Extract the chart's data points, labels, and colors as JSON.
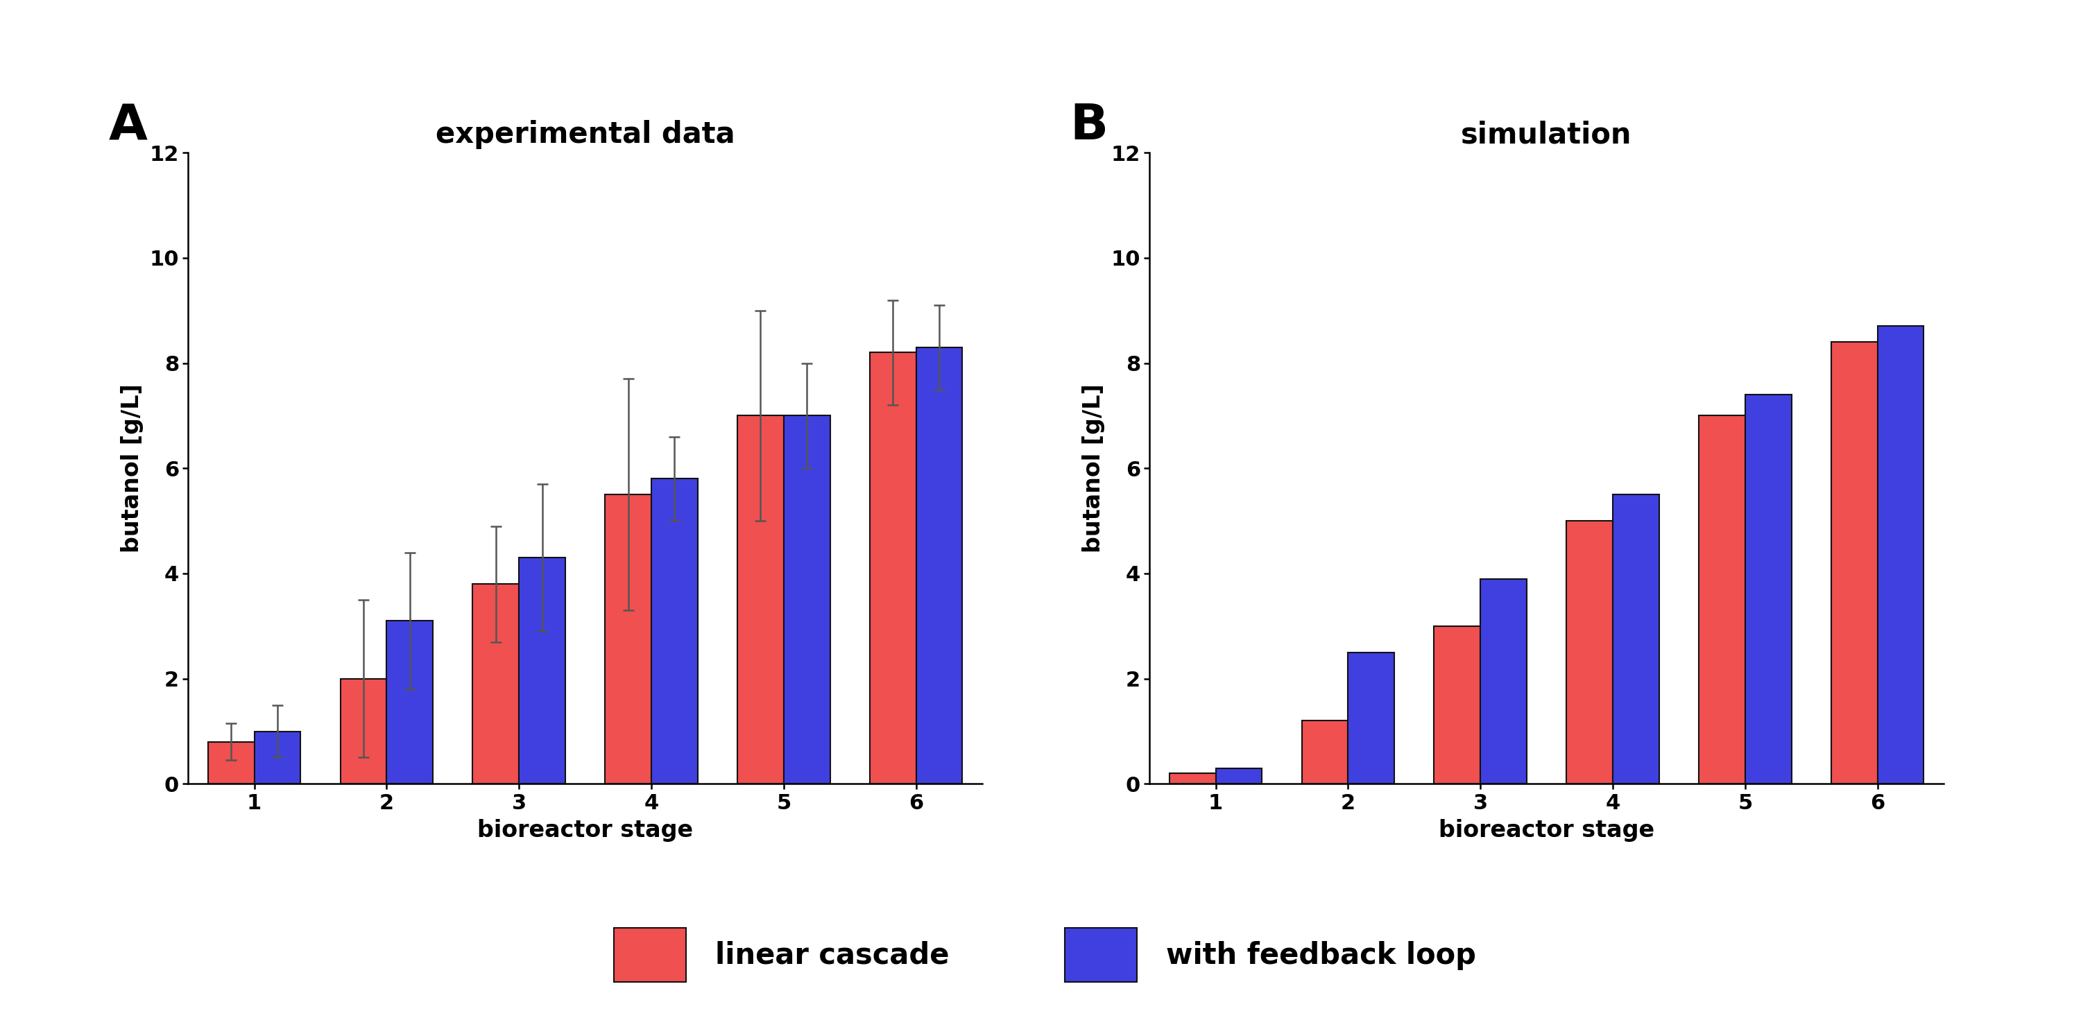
{
  "panel_A_title": "experimental data",
  "panel_B_title": "simulation",
  "panel_A_label": "A",
  "panel_B_label": "B",
  "xlabel": "bioreactor stage",
  "ylabel": "butanol [g/L]",
  "stages": [
    1,
    2,
    3,
    4,
    5,
    6
  ],
  "exp_linear": [
    0.8,
    2.0,
    3.8,
    5.5,
    7.0,
    8.2
  ],
  "exp_feedback": [
    1.0,
    3.1,
    4.3,
    5.8,
    7.0,
    8.3
  ],
  "exp_linear_err": [
    0.35,
    1.5,
    1.1,
    2.2,
    2.0,
    1.0
  ],
  "exp_feedback_err": [
    0.5,
    1.3,
    1.4,
    0.8,
    1.0,
    0.8
  ],
  "sim_linear": [
    0.2,
    1.2,
    3.0,
    5.0,
    7.0,
    8.4
  ],
  "sim_feedback": [
    0.3,
    2.5,
    3.9,
    5.5,
    7.4,
    8.7
  ],
  "ylim": [
    0,
    12
  ],
  "yticks": [
    0,
    2,
    4,
    6,
    8,
    10,
    12
  ],
  "color_linear": "#f05050",
  "color_feedback": "#4040e0",
  "bar_width": 0.35,
  "legend_linear": "linear cascade",
  "legend_feedback": "with feedback loop",
  "fontsize_title": 30,
  "fontsize_panel_label": 52,
  "fontsize_axis": 24,
  "fontsize_tick": 22,
  "fontsize_legend": 30,
  "background_color": "#ffffff",
  "edgecolor": "#111111",
  "ecolor": "#555555"
}
